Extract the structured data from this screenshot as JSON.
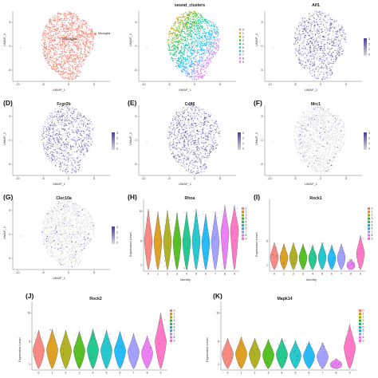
{
  "panels": {
    "A": {
      "letter": "",
      "title": "",
      "xlabel": "UMAP_1",
      "ylabel": "UMAP_2",
      "center_label": "Microglia",
      "legend": "Microglia"
    },
    "B": {
      "letter": "",
      "title": "seurat_clusters",
      "xlabel": "UMAP_1",
      "ylabel": "UMAP_2"
    },
    "C": {
      "letter": "",
      "title": "Aif1",
      "xlabel": "UMAP_1",
      "ylabel": "UMAP_2"
    },
    "D": {
      "letter": "(D)",
      "title": "Fcgr2b",
      "xlabel": "UMAP_1",
      "ylabel": "UMAP_2"
    },
    "E": {
      "letter": "(E)",
      "title": "Cd86",
      "xlabel": "UMAP_1",
      "ylabel": "UMAP_2"
    },
    "F": {
      "letter": "(F)",
      "title": "Mrc1",
      "xlabel": "UMAP_1",
      "ylabel": "UMAP_2"
    },
    "G": {
      "letter": "(G)",
      "title": "Clec10a",
      "xlabel": "UMAP_1",
      "ylabel": "UMAP_2"
    },
    "H": {
      "letter": "(H)",
      "title": "Rhoa",
      "xlabel": "Identity",
      "ylabel": "Expression Level"
    },
    "I": {
      "letter": "(I)",
      "title": "Rock1",
      "xlabel": "Identity",
      "ylabel": "Expression Level"
    },
    "J": {
      "letter": "(J)",
      "title": "Rock2",
      "xlabel": "Identity",
      "ylabel": "Expression Level"
    },
    "K": {
      "letter": "(K)",
      "title": "Mapk14",
      "xlabel": "Identity",
      "ylabel": "Expression Level"
    }
  },
  "umap_xticks": [
    "-10",
    "-5",
    "0",
    "5"
  ],
  "umap_yticks": [
    "5",
    "0",
    "-5"
  ],
  "feature_scale": [
    "3",
    "2",
    "1",
    "0"
  ],
  "clusters": [
    "0",
    "1",
    "2",
    "3",
    "4",
    "5",
    "6",
    "7",
    "8",
    "9"
  ],
  "colors": {
    "microglia": "#f08070",
    "feature_high": "#4b3f9c",
    "feature_low": "#d9d9d9",
    "clusters": [
      "#f8766d",
      "#d89000",
      "#a3a500",
      "#39b600",
      "#00bf7d",
      "#00bfc4",
      "#00b0f6",
      "#9590ff",
      "#e76bf3",
      "#ff62bc"
    ]
  },
  "chart_data": [
    {
      "panel": "H",
      "type": "violin",
      "title": "Rhoa",
      "xlabel": "Identity",
      "ylabel": "Expression Level",
      "categories": [
        "0",
        "1",
        "2",
        "3",
        "4",
        "5",
        "6",
        "7",
        "8",
        "9"
      ],
      "yticks": [
        "10",
        "5",
        "1"
      ],
      "series": [
        {
          "values": [
            5.2,
            5.0,
            5.1,
            4.9,
            5.0,
            5.2,
            4.8,
            5.0,
            6.5,
            7.0
          ]
        }
      ]
    },
    {
      "panel": "I",
      "type": "violin",
      "title": "Rock1",
      "xlabel": "Identity",
      "ylabel": "Expression Level",
      "categories": [
        "0",
        "1",
        "2",
        "3",
        "4",
        "5",
        "6",
        "7",
        "8",
        "9"
      ],
      "yticks": [
        "5",
        "1"
      ],
      "series": [
        {
          "values": [
            2.4,
            2.3,
            2.4,
            2.3,
            2.2,
            2.4,
            2.2,
            2.3,
            1.0,
            3.0
          ]
        }
      ]
    },
    {
      "panel": "J",
      "type": "violin",
      "title": "Rock2",
      "xlabel": "Identity",
      "ylabel": "Expression Level",
      "categories": [
        "0",
        "1",
        "2",
        "3",
        "4",
        "5",
        "6",
        "7",
        "8",
        "9"
      ],
      "yticks": [
        "10",
        "5",
        "1"
      ],
      "series": [
        {
          "values": [
            3.5,
            3.6,
            3.5,
            3.4,
            3.6,
            3.5,
            3.4,
            3.2,
            3.0,
            5.0
          ]
        }
      ]
    },
    {
      "panel": "K",
      "type": "violin",
      "title": "Mapk14",
      "xlabel": "Identity",
      "ylabel": "Expression Level",
      "categories": [
        "0",
        "1",
        "2",
        "3",
        "4",
        "5",
        "6",
        "7",
        "8",
        "9"
      ],
      "yticks": [
        "10",
        "5",
        "1"
      ],
      "series": [
        {
          "values": [
            2.8,
            2.9,
            2.8,
            2.7,
            2.8,
            2.6,
            2.5,
            2.4,
            1.0,
            4.0
          ]
        }
      ]
    }
  ]
}
